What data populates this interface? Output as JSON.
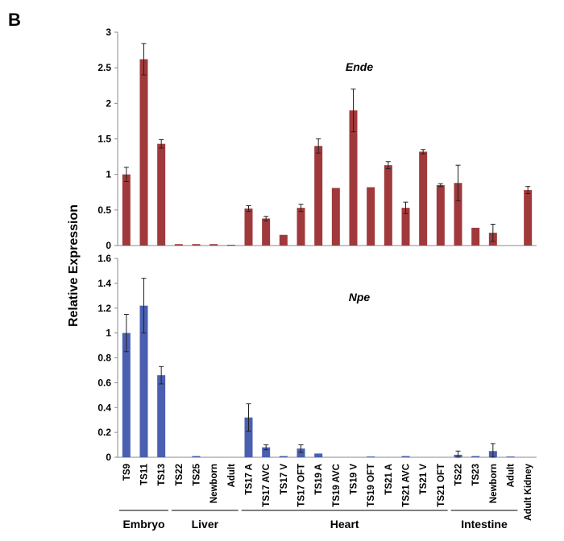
{
  "panel_label": "B",
  "ylabel": "Relative Expression",
  "categories": [
    "TS9",
    "TS11",
    "TS13",
    "TS22",
    "TS25",
    "Newborn",
    "Adult",
    "TS17 A",
    "TS17 AVC",
    "TS17 V",
    "TS17 OFT",
    "TS19 A",
    "TS19 AVC",
    "TS19 V",
    "TS19 OFT",
    "TS21 A",
    "TS21 AVC",
    "TS21 V",
    "TS21 OFT",
    "TS22",
    "TS23",
    "Newborn",
    "Adult",
    "Adult Kidney"
  ],
  "groups": [
    {
      "label": "Embryo",
      "start": 0,
      "end": 2
    },
    {
      "label": "Liver",
      "start": 3,
      "end": 6
    },
    {
      "label": "Heart",
      "start": 7,
      "end": 18
    },
    {
      "label": "Intestine",
      "start": 19,
      "end": 22
    }
  ],
  "chart_data": [
    {
      "type": "bar",
      "title": "Ende",
      "color": "#a0393b",
      "ylim": [
        0,
        3
      ],
      "yticks": [
        "0",
        "0.5",
        "1",
        "1.5",
        "2",
        "2.5",
        "3"
      ],
      "values": [
        1.0,
        2.62,
        1.43,
        0.02,
        0.02,
        0.02,
        0.01,
        0.52,
        0.38,
        0.15,
        0.53,
        1.4,
        0.81,
        1.9,
        0.82,
        1.13,
        0.53,
        1.32,
        0.85,
        0.88,
        0.25,
        0.18,
        0.0,
        0.78
      ],
      "errors": [
        0.1,
        0.22,
        0.06,
        0.0,
        0.0,
        0.0,
        0.0,
        0.04,
        0.03,
        0.0,
        0.05,
        0.1,
        0.0,
        0.3,
        0.0,
        0.05,
        0.08,
        0.03,
        0.02,
        0.25,
        0.0,
        0.12,
        0.0,
        0.05
      ]
    },
    {
      "type": "bar",
      "title": "Npe",
      "color": "#4a5fb0",
      "ylim": [
        0,
        1.6
      ],
      "yticks": [
        "0",
        "0.2",
        "0.4",
        "0.6",
        "0.8",
        "1",
        "1.2",
        "1.4",
        "1.6"
      ],
      "values": [
        1.0,
        1.22,
        0.66,
        0.0,
        0.01,
        0.0,
        0.0,
        0.32,
        0.08,
        0.01,
        0.07,
        0.03,
        0.0,
        0.0,
        0.005,
        0.0,
        0.01,
        0.0,
        0.0,
        0.02,
        0.01,
        0.05,
        0.005,
        0.0
      ],
      "errors": [
        0.15,
        0.22,
        0.07,
        0.0,
        0.0,
        0.0,
        0.0,
        0.11,
        0.02,
        0.0,
        0.03,
        0.0,
        0.0,
        0.0,
        0.0,
        0.0,
        0.0,
        0.0,
        0.0,
        0.03,
        0.0,
        0.06,
        0.0,
        0.0
      ]
    }
  ]
}
